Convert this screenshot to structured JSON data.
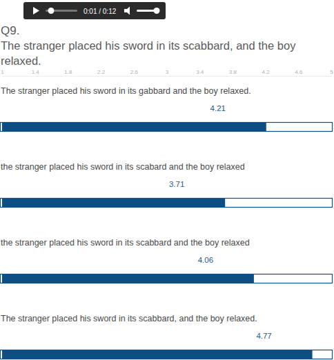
{
  "chart_data": {
    "type": "bar",
    "orientation": "horizontal",
    "title": "Q9.",
    "subtitle": "The stranger placed his sword in its scabbard, and the boy relaxed.",
    "annotations": [
      "0:01 / 0:12"
    ],
    "categories": [
      "The stranger placed his sword in its gabbard and the boy relaxed.",
      "the stranger placed his sword in its scabard and the boy relaxed",
      "the stranger placed his sword in its scabbard and the boy relaxed",
      "The stranger placed his sword in its scabbard, and the boy relaxed."
    ],
    "values": [
      4.21,
      3.71,
      4.06,
      4.77
    ],
    "color": "#0d4f84",
    "xlim": [
      1,
      5
    ],
    "xticks": [
      1,
      1.4,
      1.8,
      2.2,
      2.6,
      3,
      3.4,
      3.8,
      4.2,
      4.6,
      5
    ],
    "data_labels": true
  }
}
